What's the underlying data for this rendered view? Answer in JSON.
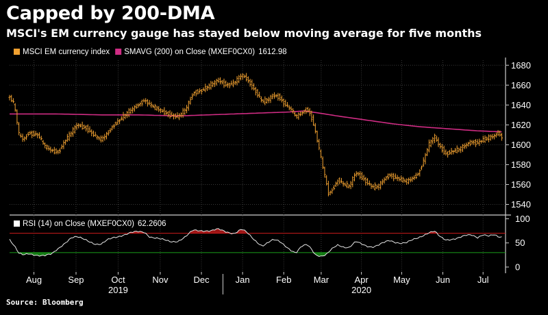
{
  "header": {
    "title": "Capped by 200-DMA",
    "subtitle": "MSCI's EM currency gauge has stayed below moving average for five months"
  },
  "source": "Source: Bloomberg",
  "colors": {
    "background": "#000000",
    "price": "#f0a030",
    "sma": "#d02c84",
    "rsi_line": "#e8e8e8",
    "overbought": "#d01c1c",
    "oversold": "#1aa01a",
    "grid": "#3a3a3a"
  },
  "chart_data": [
    {
      "type": "ohlc",
      "legend": [
        {
          "label": "MSCI EM currency index",
          "color": "#f0a030"
        },
        {
          "label": "SMAVG (200)  on Close (MXEF0CX0)",
          "value": "1612.98",
          "color": "#d02c84"
        }
      ],
      "ylim": [
        1530,
        1685
      ],
      "yticks": [
        1540,
        1560,
        1580,
        1600,
        1620,
        1640,
        1660,
        1680
      ],
      "xlim_weeks": [
        0,
        53
      ],
      "x_month_labels": [
        {
          "label": "Aug",
          "week": 2.6
        },
        {
          "label": "Sep",
          "week": 7.1
        },
        {
          "label": "Oct",
          "week": 11.6
        },
        {
          "label": "Nov",
          "week": 16.1
        },
        {
          "label": "Dec",
          "week": 20.5
        },
        {
          "label": "Jan",
          "week": 24.9
        },
        {
          "label": "Feb",
          "week": 29.3
        },
        {
          "label": "Mar",
          "week": 33.3
        },
        {
          "label": "Apr",
          "week": 37.6
        },
        {
          "label": "May",
          "week": 41.9
        },
        {
          "label": "Jun",
          "week": 46.3
        },
        {
          "label": "Jul",
          "week": 50.6
        }
      ],
      "x_years": [
        {
          "label": "2019",
          "week": 11.6
        },
        {
          "label": "2020",
          "week": 37.6
        }
      ],
      "price_anchors": [
        [
          0,
          1648
        ],
        [
          0.5,
          1640
        ],
        [
          1,
          1610
        ],
        [
          1.5,
          1605
        ],
        [
          2,
          1612
        ],
        [
          3,
          1610
        ],
        [
          3.8,
          1598
        ],
        [
          4.5,
          1594
        ],
        [
          5.2,
          1593
        ],
        [
          6,
          1605
        ],
        [
          6.6,
          1612
        ],
        [
          7.2,
          1620
        ],
        [
          8.2,
          1617
        ],
        [
          9.2,
          1608
        ],
        [
          9.8,
          1605
        ],
        [
          10.5,
          1612
        ],
        [
          11.1,
          1620
        ],
        [
          12,
          1627
        ],
        [
          13,
          1635
        ],
        [
          13.7,
          1640
        ],
        [
          14.4,
          1645
        ],
        [
          15,
          1640
        ],
        [
          16,
          1635
        ],
        [
          17.2,
          1630
        ],
        [
          18,
          1628
        ],
        [
          18.8,
          1635
        ],
        [
          19.6,
          1652
        ],
        [
          20.6,
          1655
        ],
        [
          21.5,
          1660
        ],
        [
          22.3,
          1665
        ],
        [
          23.2,
          1660
        ],
        [
          24,
          1662
        ],
        [
          24.8,
          1670
        ],
        [
          25.3,
          1667
        ],
        [
          26.2,
          1655
        ],
        [
          27,
          1643
        ],
        [
          27.6,
          1645
        ],
        [
          28.2,
          1650
        ],
        [
          28.8,
          1648
        ],
        [
          29.4,
          1641
        ],
        [
          30,
          1636
        ],
        [
          30.6,
          1628
        ],
        [
          31.2,
          1632
        ],
        [
          31.8,
          1636
        ],
        [
          32.2,
          1630
        ],
        [
          32.7,
          1612
        ],
        [
          33.3,
          1585
        ],
        [
          33.8,
          1563
        ],
        [
          34.1,
          1550
        ],
        [
          34.6,
          1557
        ],
        [
          35.1,
          1565
        ],
        [
          35.7,
          1560
        ],
        [
          36.3,
          1558
        ],
        [
          37,
          1572
        ],
        [
          37.6,
          1568
        ],
        [
          38.2,
          1562
        ],
        [
          38.8,
          1557
        ],
        [
          39.4,
          1558
        ],
        [
          40,
          1565
        ],
        [
          40.6,
          1570
        ],
        [
          41.2,
          1567
        ],
        [
          41.8,
          1565
        ],
        [
          42.4,
          1563
        ],
        [
          43,
          1566
        ],
        [
          43.6,
          1570
        ],
        [
          44.2,
          1583
        ],
        [
          44.8,
          1600
        ],
        [
          45.4,
          1608
        ],
        [
          46,
          1598
        ],
        [
          46.6,
          1591
        ],
        [
          47.2,
          1593
        ],
        [
          48,
          1595
        ],
        [
          48.8,
          1600
        ],
        [
          49.4,
          1603
        ],
        [
          50,
          1602
        ],
        [
          50.6,
          1605
        ],
        [
          51.2,
          1607
        ],
        [
          51.8,
          1609
        ],
        [
          52.2,
          1612
        ],
        [
          52.6,
          1608
        ]
      ],
      "sma_anchors": [
        [
          0,
          1631
        ],
        [
          5,
          1631
        ],
        [
          10,
          1630
        ],
        [
          14,
          1630
        ],
        [
          18,
          1629
        ],
        [
          21,
          1630
        ],
        [
          24,
          1631
        ],
        [
          27,
          1632
        ],
        [
          30,
          1633
        ],
        [
          31.5,
          1634
        ],
        [
          33,
          1632
        ],
        [
          35,
          1629
        ],
        [
          38,
          1625
        ],
        [
          41,
          1621
        ],
        [
          44,
          1618
        ],
        [
          47,
          1616
        ],
        [
          50,
          1614
        ],
        [
          52.6,
          1613
        ]
      ]
    },
    {
      "type": "line",
      "legend": [
        {
          "label": "RSI (14)  on Close (MXEF0CX0)",
          "value": "62.2606",
          "color": "#ffffff"
        }
      ],
      "ylim": [
        -10,
        105
      ],
      "yticks": [
        0,
        50,
        100
      ],
      "overbought": 70,
      "oversold": 30,
      "rsi_anchors": [
        [
          0,
          58
        ],
        [
          0.5,
          45
        ],
        [
          1,
          28
        ],
        [
          1.5,
          24
        ],
        [
          2,
          27
        ],
        [
          3,
          25
        ],
        [
          3.8,
          24
        ],
        [
          4.5,
          26
        ],
        [
          5.2,
          38
        ],
        [
          6,
          52
        ],
        [
          6.6,
          61
        ],
        [
          7.2,
          62
        ],
        [
          8.2,
          56
        ],
        [
          9.2,
          48
        ],
        [
          9.8,
          47
        ],
        [
          10.5,
          56
        ],
        [
          11.1,
          61
        ],
        [
          12,
          66
        ],
        [
          13,
          71
        ],
        [
          13.7,
          73
        ],
        [
          14.4,
          73
        ],
        [
          15,
          63
        ],
        [
          16,
          58
        ],
        [
          17.2,
          53
        ],
        [
          18,
          54
        ],
        [
          18.8,
          62
        ],
        [
          19.6,
          76
        ],
        [
          20.6,
          76
        ],
        [
          21.5,
          75
        ],
        [
          22.3,
          78
        ],
        [
          23.2,
          73
        ],
        [
          24,
          70
        ],
        [
          24.8,
          78
        ],
        [
          25.3,
          72
        ],
        [
          26.2,
          56
        ],
        [
          27,
          44
        ],
        [
          27.6,
          50
        ],
        [
          28.2,
          56
        ],
        [
          28.8,
          54
        ],
        [
          29.4,
          46
        ],
        [
          30,
          36
        ],
        [
          30.6,
          28
        ],
        [
          31.2,
          42
        ],
        [
          31.8,
          47
        ],
        [
          32.2,
          40
        ],
        [
          32.7,
          26
        ],
        [
          33.3,
          22
        ],
        [
          33.8,
          24
        ],
        [
          34.1,
          30
        ],
        [
          34.6,
          40
        ],
        [
          35.1,
          47
        ],
        [
          35.7,
          42
        ],
        [
          36.3,
          40
        ],
        [
          37,
          52
        ],
        [
          37.6,
          48
        ],
        [
          38.2,
          44
        ],
        [
          38.8,
          42
        ],
        [
          39.4,
          45
        ],
        [
          40,
          50
        ],
        [
          40.6,
          55
        ],
        [
          41.2,
          52
        ],
        [
          41.8,
          50
        ],
        [
          42.4,
          50
        ],
        [
          43,
          55
        ],
        [
          43.6,
          60
        ],
        [
          44.2,
          66
        ],
        [
          44.8,
          72
        ],
        [
          45.4,
          74
        ],
        [
          46,
          62
        ],
        [
          46.6,
          56
        ],
        [
          47.2,
          58
        ],
        [
          48,
          61
        ],
        [
          48.8,
          65
        ],
        [
          49.4,
          66
        ],
        [
          50,
          62
        ],
        [
          50.6,
          68
        ],
        [
          51.2,
          64
        ],
        [
          51.8,
          66
        ],
        [
          52.2,
          62
        ],
        [
          52.6,
          62
        ]
      ]
    }
  ]
}
